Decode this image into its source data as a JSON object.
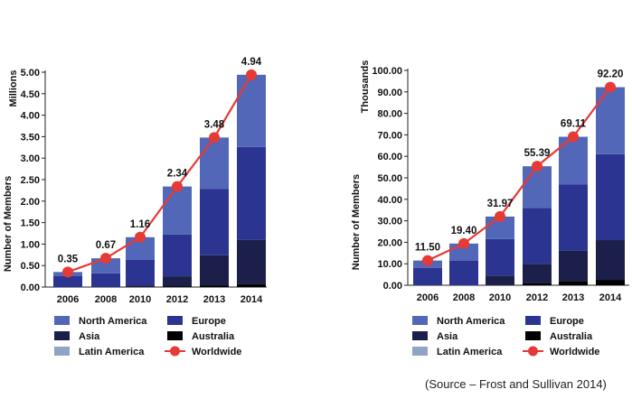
{
  "colors": {
    "north_america": "#5367b8",
    "europe": "#2b3591",
    "asia": "#1b1f4a",
    "australia": "#000000",
    "latin_america": "#8fa3c4",
    "worldwide": "#e53a35",
    "axis": "#222222"
  },
  "legend_labels": {
    "north_america": "North America",
    "europe": "Europe",
    "asia": "Asia",
    "australia": "Australia",
    "latin_america": "Latin America",
    "worldwide": "Worldwide"
  },
  "source": "(Source – Frost and Sullivan 2014)",
  "chart_data": [
    {
      "type": "bar",
      "stacked": true,
      "unit_label": "Millions",
      "ylabel": "Number of Members",
      "xlabel": "",
      "ylim": [
        0,
        5
      ],
      "yticks": [
        "0.00",
        "0.50",
        "1.00",
        "1.50",
        "2.00",
        "2.50",
        "3.00",
        "3.50",
        "4.00",
        "4.50",
        "5.00"
      ],
      "categories": [
        "2006",
        "2008",
        "2010",
        "2012",
        "2013",
        "2014"
      ],
      "series": [
        {
          "name": "Australia",
          "key": "australia",
          "values": [
            0.0,
            0.0,
            0.0,
            0.02,
            0.04,
            0.07
          ]
        },
        {
          "name": "Asia",
          "key": "asia",
          "values": [
            0.0,
            0.0,
            0.04,
            0.23,
            0.7,
            1.03
          ]
        },
        {
          "name": "Europe",
          "key": "europe",
          "values": [
            0.26,
            0.32,
            0.59,
            0.97,
            1.54,
            2.16
          ]
        },
        {
          "name": "North America",
          "key": "north_america",
          "values": [
            0.09,
            0.35,
            0.53,
            1.12,
            1.2,
            1.68
          ]
        }
      ],
      "line": {
        "name": "Worldwide",
        "values": [
          0.35,
          0.67,
          1.16,
          2.34,
          3.48,
          4.94
        ]
      },
      "data_labels": [
        "0.35",
        "0.67",
        "1.16",
        "2.34",
        "3.48",
        "4.94"
      ]
    },
    {
      "type": "bar",
      "stacked": true,
      "unit_label": "Thousands",
      "ylabel": "Number of Members",
      "xlabel": "",
      "ylim": [
        0,
        100
      ],
      "yticks": [
        "0.00",
        "10.00",
        "20.00",
        "30.00",
        "40.00",
        "50.00",
        "60.00",
        "70.00",
        "80.00",
        "90.00",
        "100.00"
      ],
      "categories": [
        "2006",
        "2008",
        "2010",
        "2012",
        "2013",
        "2014"
      ],
      "series": [
        {
          "name": "Australia",
          "key": "australia",
          "values": [
            0.0,
            0.0,
            0.0,
            1.0,
            2.0,
            2.5
          ]
        },
        {
          "name": "Asia",
          "key": "asia",
          "values": [
            0.0,
            0.0,
            4.5,
            9.0,
            14.0,
            18.5
          ]
        },
        {
          "name": "Europe",
          "key": "europe",
          "values": [
            8.0,
            11.5,
            17.0,
            26.0,
            31.0,
            40.0
          ]
        },
        {
          "name": "North America",
          "key": "north_america",
          "values": [
            3.5,
            7.9,
            10.47,
            19.39,
            22.11,
            31.2
          ]
        }
      ],
      "line": {
        "name": "Worldwide",
        "values": [
          11.5,
          19.4,
          31.97,
          55.39,
          69.11,
          92.2
        ]
      },
      "data_labels": [
        "11.50",
        "19.40",
        "31.97",
        "55.39",
        "69.11",
        "92.20"
      ]
    }
  ]
}
